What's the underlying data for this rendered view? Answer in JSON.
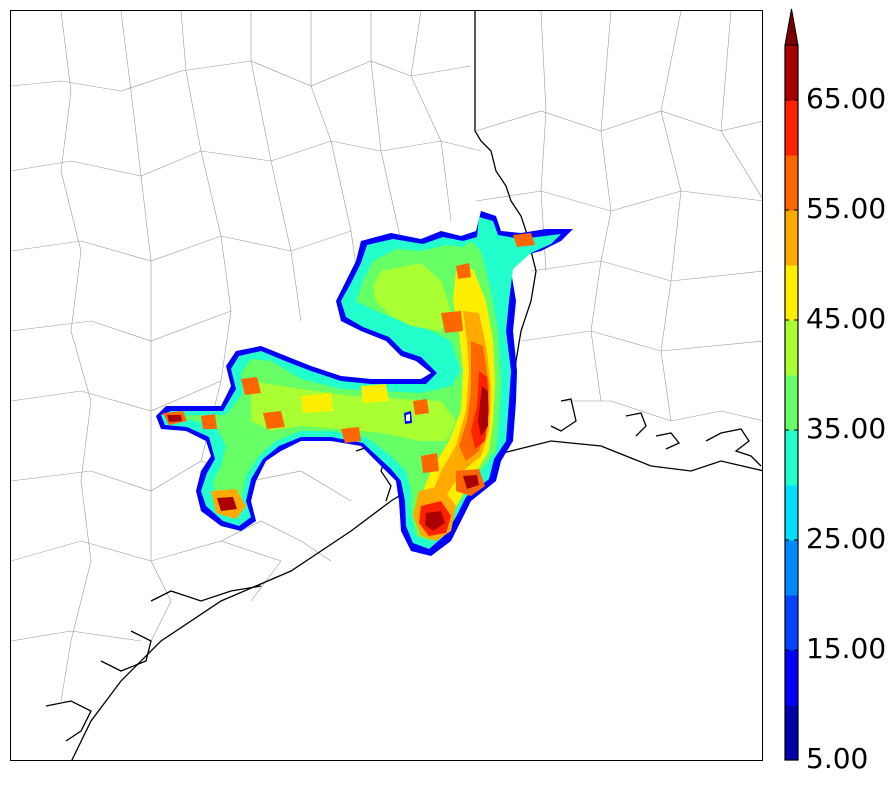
{
  "colorbar": {
    "tick_labels": [
      "5.00",
      "15.00",
      "25.00",
      "35.00",
      "45.00",
      "55.00",
      "65.00"
    ],
    "levels": [
      5,
      10,
      15,
      20,
      25,
      30,
      35,
      40,
      45,
      50,
      55,
      60,
      65,
      70
    ],
    "colors": [
      "#0000aa",
      "#0000ff",
      "#0044ff",
      "#0088ff",
      "#00ddff",
      "#22ffcc",
      "#66ff66",
      "#aaff33",
      "#ffee00",
      "#ffaa00",
      "#ff6600",
      "#ff2200",
      "#aa0000",
      "#7a0000"
    ],
    "extend": "max"
  },
  "map": {
    "borders_color": "#000000",
    "counties_color": "#9a9a9a"
  }
}
